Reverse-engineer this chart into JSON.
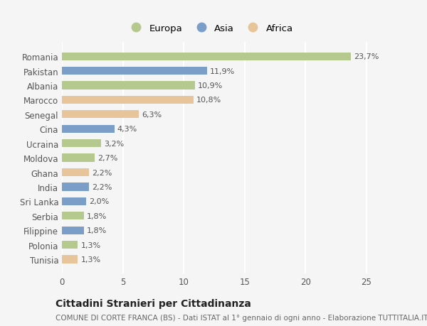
{
  "categories": [
    "Romania",
    "Pakistan",
    "Albania",
    "Marocco",
    "Senegal",
    "Cina",
    "Ucraina",
    "Moldova",
    "Ghana",
    "India",
    "Sri Lanka",
    "Serbia",
    "Filippine",
    "Polonia",
    "Tunisia"
  ],
  "values": [
    23.7,
    11.9,
    10.9,
    10.8,
    6.3,
    4.3,
    3.2,
    2.7,
    2.2,
    2.2,
    2.0,
    1.8,
    1.8,
    1.3,
    1.3
  ],
  "labels": [
    "23,7%",
    "11,9%",
    "10,9%",
    "10,8%",
    "6,3%",
    "4,3%",
    "3,2%",
    "2,7%",
    "2,2%",
    "2,2%",
    "2,0%",
    "1,8%",
    "1,8%",
    "1,3%",
    "1,3%"
  ],
  "continents": [
    "Europa",
    "Asia",
    "Europa",
    "Africa",
    "Africa",
    "Asia",
    "Europa",
    "Europa",
    "Africa",
    "Asia",
    "Asia",
    "Europa",
    "Asia",
    "Europa",
    "Africa"
  ],
  "colors": {
    "Europa": "#b5c98e",
    "Asia": "#7b9ec9",
    "Africa": "#e8c49a"
  },
  "xlim": [
    0,
    27
  ],
  "xticks": [
    0,
    5,
    10,
    15,
    20,
    25
  ],
  "title": "Cittadini Stranieri per Cittadinanza",
  "subtitle": "COMUNE DI CORTE FRANCA (BS) - Dati ISTAT al 1° gennaio di ogni anno - Elaborazione TUTTITALIA.IT",
  "background_color": "#f5f5f5",
  "grid_color": "#ffffff",
  "bar_height": 0.55,
  "title_fontsize": 10,
  "subtitle_fontsize": 7.5,
  "label_fontsize": 8,
  "tick_fontsize": 8.5,
  "legend_fontsize": 9.5
}
